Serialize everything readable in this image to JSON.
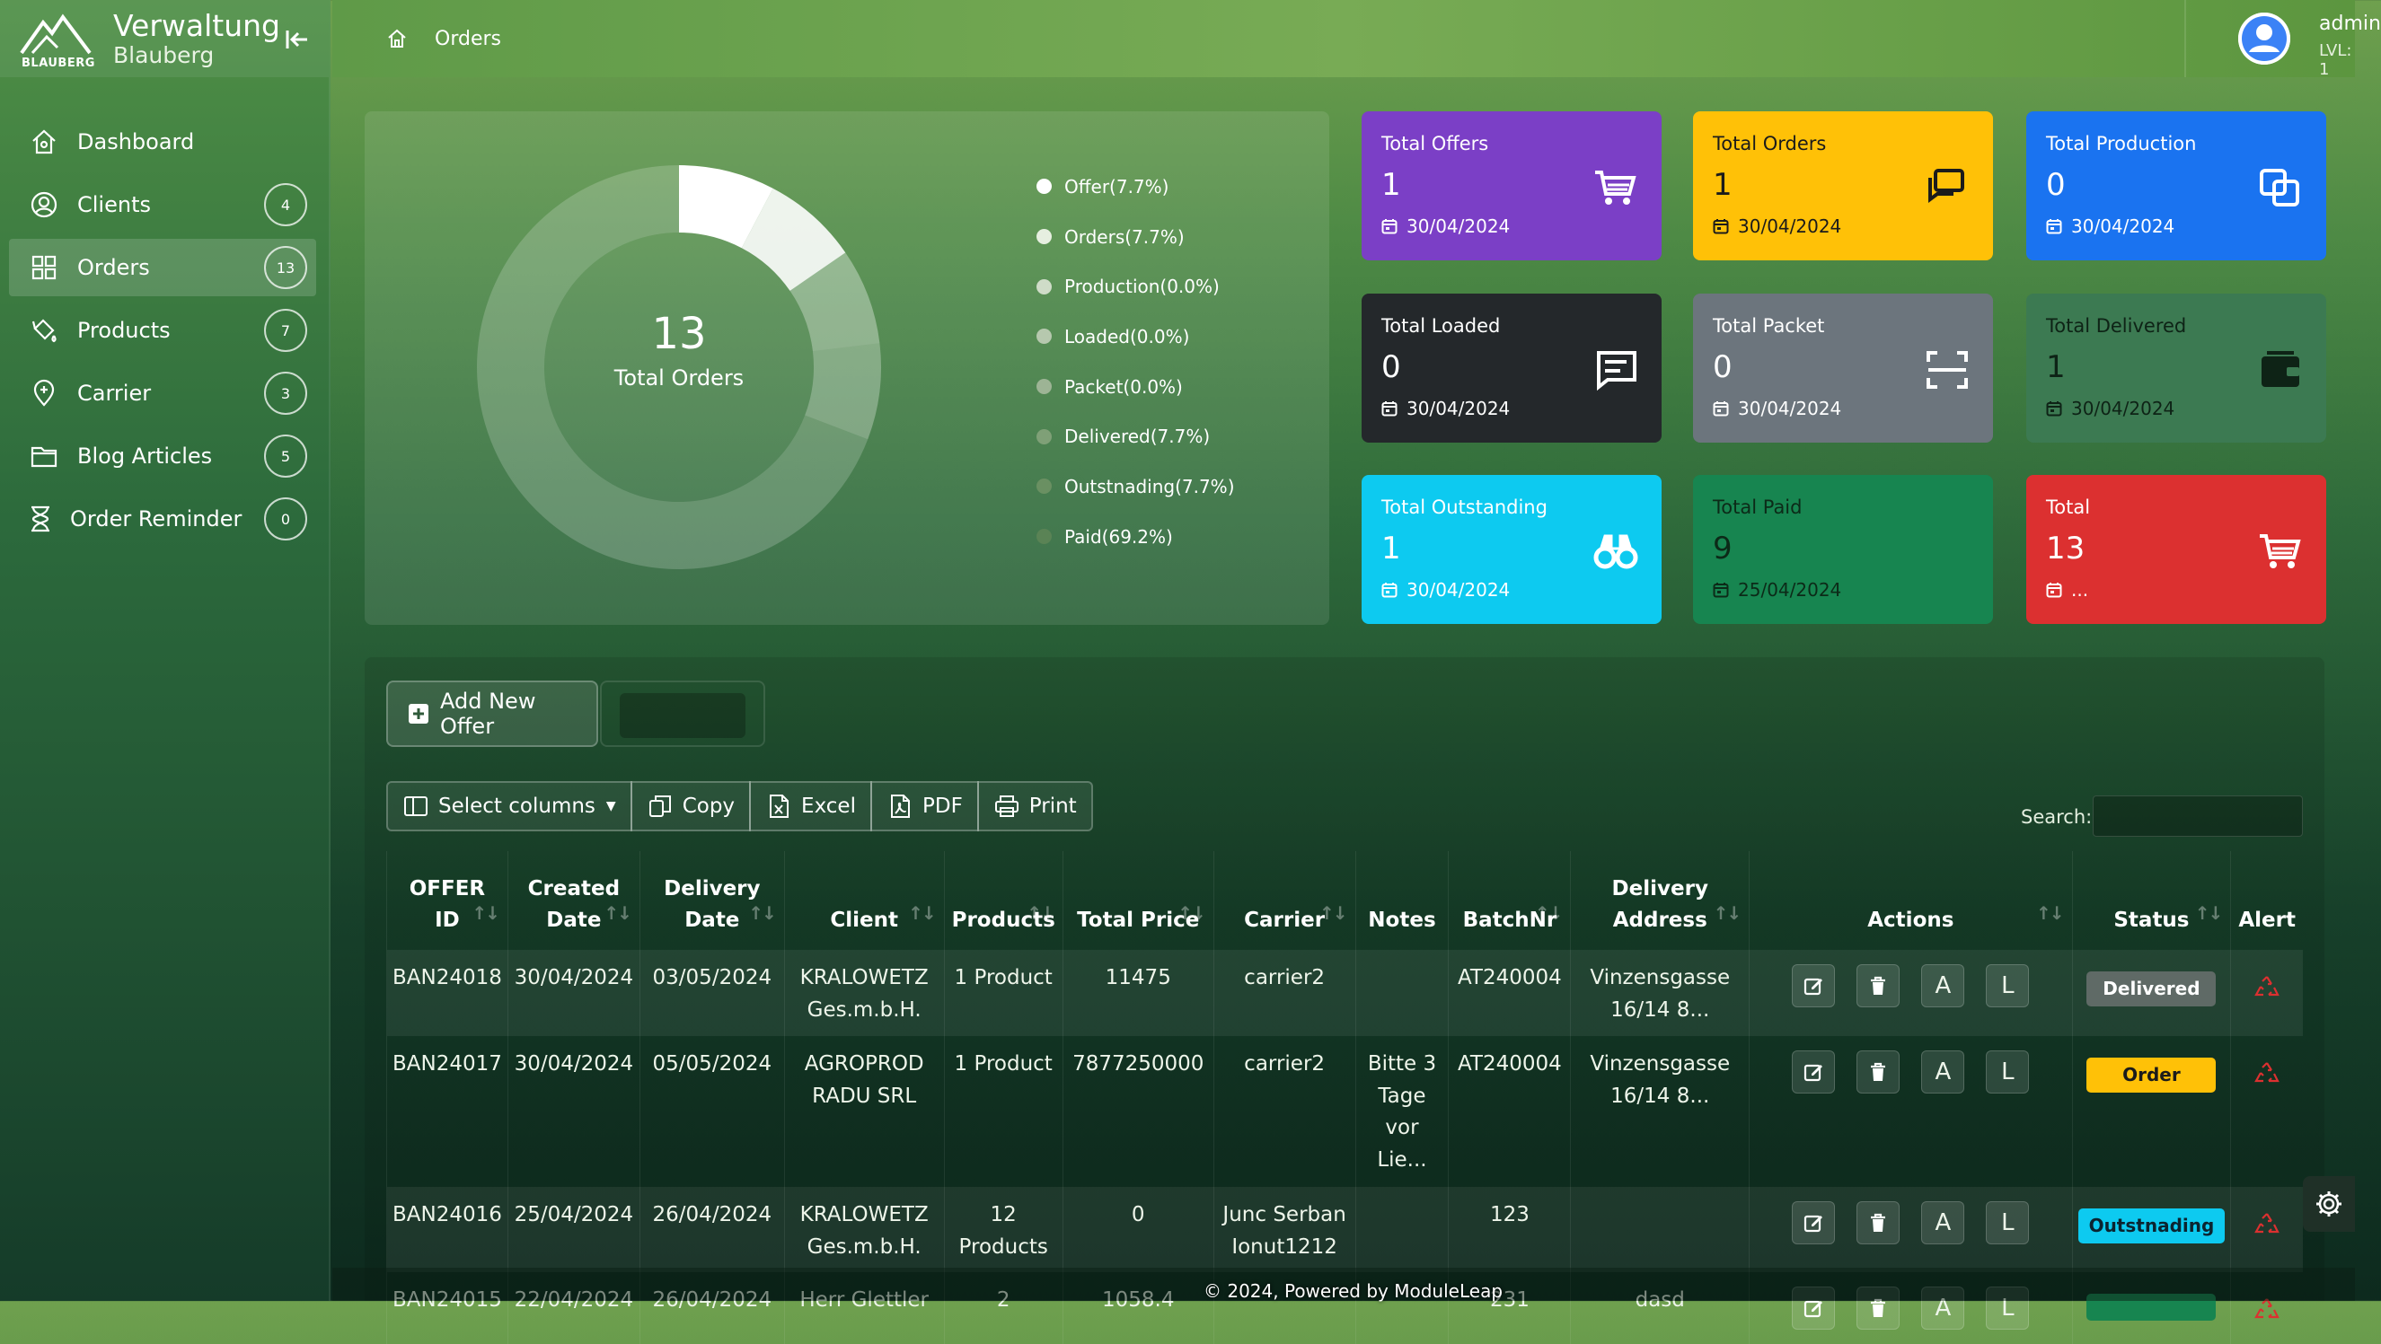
{
  "brand": {
    "logo_text": "BLAUBERG",
    "title": "Verwaltung",
    "subtitle": "Blauberg"
  },
  "sidebar": {
    "items": [
      {
        "label": "Dashboard",
        "icon": "home-icon",
        "badge": ""
      },
      {
        "label": "Clients",
        "icon": "user-icon",
        "badge": "4"
      },
      {
        "label": "Orders",
        "icon": "grid-icon",
        "badge": "13",
        "active": true
      },
      {
        "label": "Products",
        "icon": "paint-bucket-icon",
        "badge": "7"
      },
      {
        "label": "Carrier",
        "icon": "map-pin-icon",
        "badge": "3"
      },
      {
        "label": "Blog Articles",
        "icon": "folder-icon",
        "badge": "5"
      },
      {
        "label": "Order Reminder",
        "icon": "hourglass-icon",
        "badge": "0"
      }
    ]
  },
  "header": {
    "breadcrumb": "Orders",
    "user": {
      "name": "admin",
      "level": "LVL: 1"
    }
  },
  "chart_data": {
    "type": "pie",
    "center_value": "13",
    "center_label": "Total Orders",
    "legend": [
      {
        "label": "Offer(7.7%)",
        "value": 7.7,
        "color": "#ffffff"
      },
      {
        "label": "Orders(7.7%)",
        "value": 7.7,
        "color": "#e6efe0"
      },
      {
        "label": "Production(0.0%)",
        "value": 0.0,
        "color": "#cfdcc8"
      },
      {
        "label": "Loaded(0.0%)",
        "value": 0.0,
        "color": "#b6c8ae"
      },
      {
        "label": "Packet(0.0%)",
        "value": 0.0,
        "color": "#9db495"
      },
      {
        "label": "Delivered(7.7%)",
        "value": 7.7,
        "color": "#7fa077"
      },
      {
        "label": "Outstnading(7.7%)",
        "value": 7.7,
        "color": "#6a9062"
      },
      {
        "label": "Paid(69.2%)",
        "value": 69.2,
        "color": "#5a8355"
      }
    ]
  },
  "stats": [
    {
      "title": "Total Offers",
      "value": "1",
      "date": "30/04/2024",
      "icon": "cart-icon",
      "bg": "#7b3fc6",
      "fg": "#ffffff"
    },
    {
      "title": "Total Orders",
      "value": "1",
      "date": "30/04/2024",
      "icon": "chat-icon",
      "bg": "#ffc107",
      "fg": "#1b1b1b"
    },
    {
      "title": "Total Production",
      "value": "0",
      "date": "30/04/2024",
      "icon": "copy-icon",
      "bg": "#1a73f0",
      "fg": "#ffffff"
    },
    {
      "title": "Total Loaded",
      "value": "0",
      "date": "30/04/2024",
      "icon": "message-icon",
      "bg": "#24282b",
      "fg": "#ffffff"
    },
    {
      "title": "Total Packet",
      "value": "0",
      "date": "30/04/2024",
      "icon": "scan-icon",
      "bg": "#6c757d",
      "fg": "#ffffff"
    },
    {
      "title": "Total Delivered",
      "value": "1",
      "date": "30/04/2024",
      "icon": "wallet-icon",
      "bg": "#3c7a52",
      "fg": "#0e2316"
    },
    {
      "title": "Total Outstanding",
      "value": "1",
      "date": "30/04/2024",
      "icon": "binoculars-icon",
      "bg": "#0dcaf0",
      "fg": "#ffffff"
    },
    {
      "title": "Total Paid",
      "value": "9",
      "date": "25/04/2024",
      "icon": "",
      "bg": "#178550",
      "fg": "#0c2a18"
    },
    {
      "title": "Total",
      "value": "13",
      "date": "...",
      "icon": "cart-icon",
      "bg": "#dc3030",
      "fg": "#ffffff"
    }
  ],
  "table": {
    "add_offer_label": "Add New Offer",
    "toolbar": {
      "select_columns": "Select columns",
      "copy": "Copy",
      "excel": "Excel",
      "pdf": "PDF",
      "print": "Print"
    },
    "search_label": "Search:",
    "search_value": "",
    "columns": [
      "OFFER ID",
      "Created Date",
      "Delivery Date",
      "Client",
      "Products",
      "Total Price",
      "Carrier",
      "Notes",
      "BatchNr",
      "Delivery Address",
      "Actions",
      "Status",
      "Alert"
    ],
    "rows": [
      {
        "offer_id": "BAN24018",
        "created": "30/04/2024",
        "delivery": "03/05/2024",
        "client": "KRALOWETZ Ges.m.b.H.",
        "products": "1 Product",
        "price": "11475",
        "carrier": "carrier2",
        "notes": "",
        "batch": "AT240004",
        "address": "Vinzensgasse 16/14 8...",
        "status": "Delivered",
        "status_bg": "#5f6a66",
        "status_fg": "#ffffff"
      },
      {
        "offer_id": "BAN24017",
        "created": "30/04/2024",
        "delivery": "05/05/2024",
        "client": "AGROPROD RADU SRL",
        "products": "1 Product",
        "price": "7877250000",
        "carrier": "carrier2",
        "notes": "Bitte 3 Tage vor Lie...",
        "batch": "AT240004",
        "address": "Vinzensgasse 16/14 8...",
        "status": "Order",
        "status_bg": "#ffc107",
        "status_fg": "#1b1b1b"
      },
      {
        "offer_id": "BAN24016",
        "created": "25/04/2024",
        "delivery": "26/04/2024",
        "client": "KRALOWETZ Ges.m.b.H.",
        "products": "12 Products",
        "price": "0",
        "carrier": "Junc Serban Ionut1212",
        "notes": "",
        "batch": "123",
        "address": "",
        "status": "Outstnading",
        "status_bg": "#0dcaf0",
        "status_fg": "#0b2430"
      },
      {
        "offer_id": "BAN24015",
        "created": "22/04/2024",
        "delivery": "26/04/2024",
        "client": "Herr Glettler",
        "products": "2",
        "price": "1058.4",
        "carrier": "",
        "notes": "",
        "batch": "231",
        "address": "dasd",
        "status": "",
        "status_bg": "#178550",
        "status_fg": "#ffffff"
      }
    ],
    "action_labels": {
      "approve": "A",
      "load": "L"
    }
  },
  "footer": {
    "text": "© 2024, Powered by ModuleLeap"
  }
}
